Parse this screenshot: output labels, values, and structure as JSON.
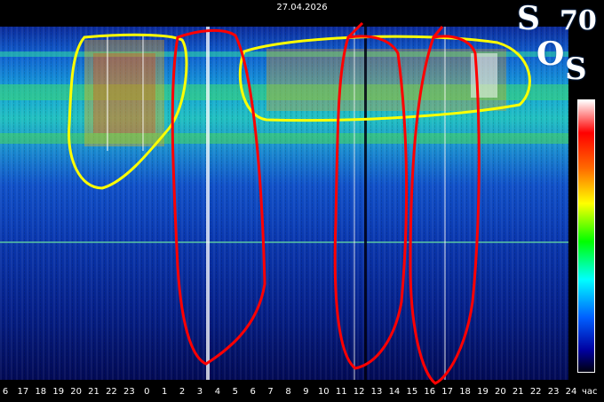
{
  "header": {
    "date": "27.04.2026"
  },
  "axis": {
    "ticks": [
      "6",
      "17",
      "18",
      "19",
      "20",
      "21",
      "22",
      "23",
      "0",
      "1",
      "2",
      "3",
      "4",
      "5",
      "6",
      "7",
      "8",
      "9",
      "10",
      "11",
      "12",
      "13",
      "14",
      "15",
      "16",
      "17",
      "18",
      "19",
      "20",
      "21",
      "22",
      "23",
      "24"
    ],
    "unit": "час"
  },
  "logo": {
    "letters": [
      "S",
      "O",
      "S"
    ],
    "number": "70"
  },
  "colors": {
    "background": "#000000",
    "annotation_yellow": "#ffff00",
    "annotation_red": "#ff0000"
  }
}
